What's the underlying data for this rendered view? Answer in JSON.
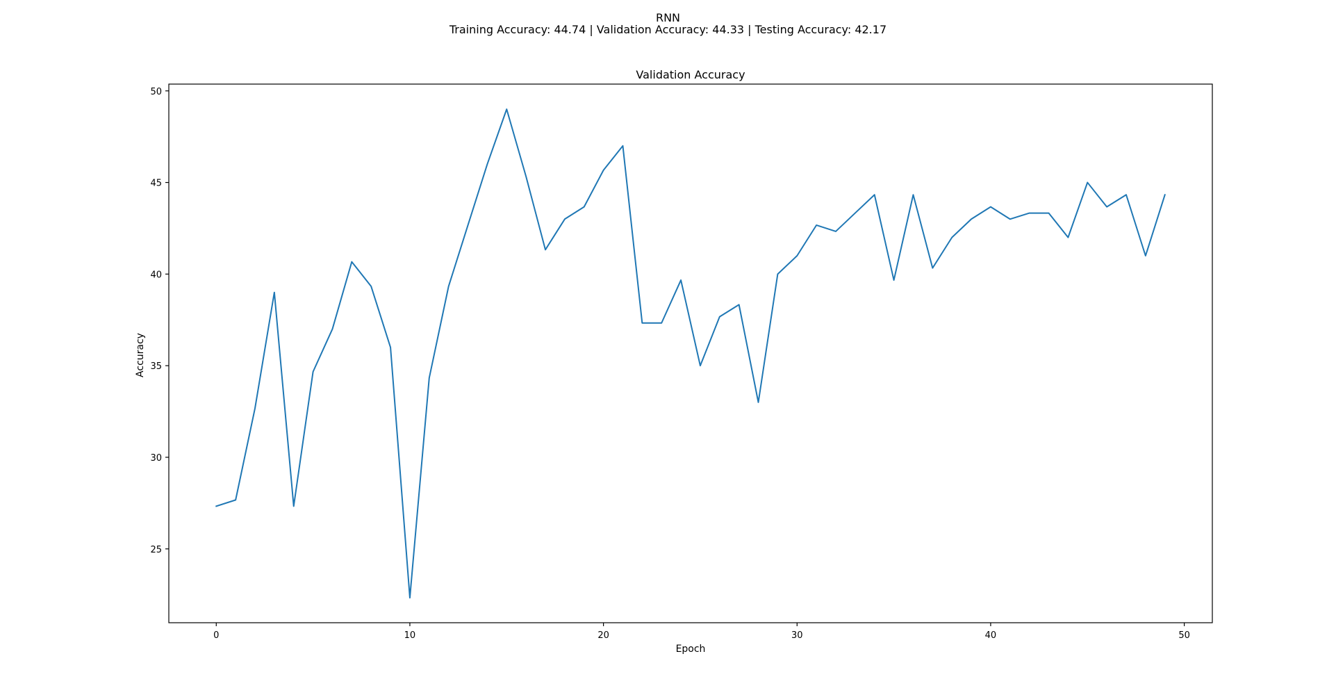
{
  "figure": {
    "title_lines": [
      "RNN",
      "Training Accuracy: 44.74 | Validation Accuracy: 44.33 | Testing Accuracy: 42.17"
    ]
  },
  "chart_data": {
    "type": "line",
    "title": "Validation Accuracy",
    "xlabel": "Epoch",
    "ylabel": "Accuracy",
    "xlim": [
      -2.45,
      51.45
    ],
    "ylim": [
      20.97,
      50.37
    ],
    "xticks": [
      0,
      10,
      20,
      30,
      40,
      50
    ],
    "yticks": [
      25,
      30,
      35,
      40,
      45,
      50
    ],
    "grid": false,
    "line_color": "#1f77b4",
    "series": [
      {
        "x": [
          0,
          1,
          2,
          3,
          4,
          5,
          6,
          7,
          8,
          9,
          10,
          11,
          12,
          13,
          14,
          15,
          16,
          17,
          18,
          19,
          20,
          21,
          22,
          23,
          24,
          25,
          26,
          27,
          28,
          29,
          30,
          31,
          32,
          33,
          34,
          35,
          36,
          37,
          38,
          39,
          40,
          41,
          42,
          43,
          44,
          45,
          46,
          47,
          48,
          49
        ],
        "values": [
          27.33,
          27.67,
          32.67,
          39.0,
          27.33,
          34.67,
          37.0,
          40.67,
          39.33,
          36.0,
          22.33,
          34.33,
          39.33,
          42.67,
          46.0,
          49.0,
          45.33,
          41.33,
          43.0,
          43.67,
          45.67,
          47.0,
          37.33,
          37.33,
          39.67,
          35.0,
          37.67,
          38.33,
          33.0,
          40.0,
          41.0,
          42.67,
          42.33,
          43.33,
          44.33,
          39.67,
          44.33,
          40.33,
          42.0,
          43.0,
          43.67,
          43.0,
          43.33,
          43.33,
          42.0,
          45.0,
          43.67,
          44.33,
          41.0,
          44.33
        ]
      }
    ]
  }
}
